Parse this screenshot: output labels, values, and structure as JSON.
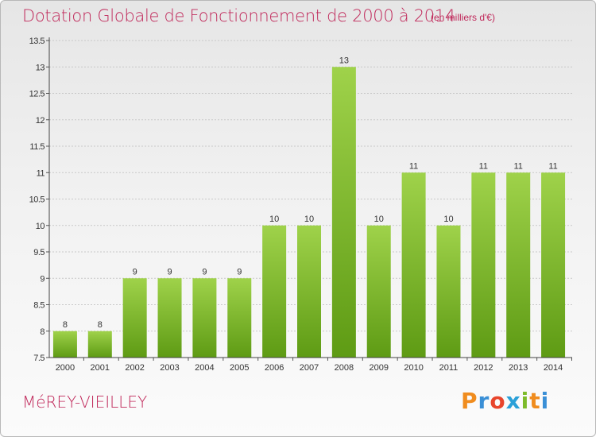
{
  "header": {
    "title": "Dotation Globale de Fonctionnement de 2000 à 2014",
    "unit": "(en milliers d'€)"
  },
  "footer": {
    "place": "MéREY-VIEILLEY",
    "logo": "Proxiti"
  },
  "colors": {
    "title": "#c0285a",
    "bar_light": "#9fd24a",
    "bar_dark": "#5e9b14",
    "logo_letters": [
      "#f08c1e",
      "#3a8fd6",
      "#e8452c",
      "#2aa0d8",
      "#7dbb2a",
      "#f08c1e",
      "#3a8fd6"
    ]
  },
  "chart_data": {
    "type": "bar",
    "title": "Dotation Globale de Fonctionnement de 2000 à 2014",
    "xlabel": "",
    "ylabel": "",
    "categories": [
      "2000",
      "2001",
      "2002",
      "2003",
      "2004",
      "2005",
      "2006",
      "2007",
      "2008",
      "2009",
      "2010",
      "2011",
      "2012",
      "2013",
      "2014"
    ],
    "values": [
      8,
      8,
      9,
      9,
      9,
      9,
      10,
      10,
      13,
      10,
      11,
      10,
      11,
      11,
      11
    ],
    "value_labels": [
      "8",
      "8",
      "9",
      "9",
      "9",
      "9",
      "10",
      "10",
      "13",
      "10",
      "11",
      "10",
      "11",
      "11",
      "11"
    ],
    "ylim": [
      7.5,
      13.5
    ],
    "yticks": [
      7.5,
      8,
      8.5,
      9,
      9.5,
      10,
      10.5,
      11,
      11.5,
      12,
      12.5,
      13,
      13.5
    ],
    "ytick_labels": [
      "7.5",
      "8",
      "8.5",
      "9",
      "9.5",
      "10",
      "10.5",
      "11",
      "11.5",
      "12",
      "12.5",
      "13",
      "13.5"
    ],
    "grid": true
  }
}
